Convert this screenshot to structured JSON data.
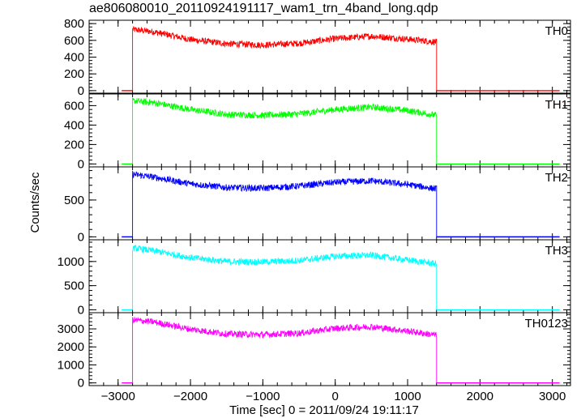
{
  "chart_data": {
    "type": "line",
    "title": "ae806080010_20110924191117_wam1_trn_4band_long.qdp",
    "xlabel": "Time [sec] 0 = 2011/09/24 19:11:17",
    "ylabel": "Counts/sec",
    "xlim": [
      -3400,
      3250
    ],
    "x_ticks": [
      -3000,
      -2000,
      -1000,
      0,
      1000,
      2000,
      3000
    ],
    "x_tick_labels": [
      "−3000",
      "−2000",
      "−1000",
      "0",
      "1000",
      "2000",
      "3000"
    ],
    "legend": "none",
    "grid": false,
    "panels": [
      {
        "name": "TH0",
        "color": "#ff0000",
        "ylim": [
          -30,
          840
        ],
        "y_ticks": [
          0,
          200,
          400,
          600,
          800
        ],
        "baseline_segments": [
          [
            -2950,
            -2800
          ],
          [
            1400,
            3100
          ]
        ],
        "x": [
          -2800,
          -2500,
          -2000,
          -1500,
          -1000,
          -500,
          0,
          500,
          1000,
          1400
        ],
        "values": [
          730,
          700,
          610,
          560,
          545,
          565,
          620,
          650,
          615,
          580
        ]
      },
      {
        "name": "TH1",
        "color": "#00ff00",
        "ylim": [
          -30,
          720
        ],
        "y_ticks": [
          0,
          200,
          400,
          600
        ],
        "baseline_segments": [
          [
            -2950,
            -2800
          ],
          [
            1400,
            3100
          ]
        ],
        "x": [
          -2800,
          -2500,
          -2000,
          -1500,
          -1000,
          -500,
          0,
          500,
          1000,
          1400
        ],
        "values": [
          650,
          630,
          560,
          510,
          500,
          515,
          560,
          585,
          550,
          500
        ]
      },
      {
        "name": "TH2",
        "color": "#0000ff",
        "ylim": [
          -40,
          950
        ],
        "y_ticks": [
          0,
          500
        ],
        "baseline_segments": [
          [
            -2950,
            -2800
          ],
          [
            1400,
            3100
          ]
        ],
        "x": [
          -2800,
          -2500,
          -2000,
          -1500,
          -1000,
          -500,
          0,
          500,
          1000,
          1400
        ],
        "values": [
          850,
          810,
          720,
          670,
          660,
          690,
          740,
          760,
          710,
          650
        ]
      },
      {
        "name": "TH3",
        "color": "#00ffff",
        "ylim": [
          -60,
          1450
        ],
        "y_ticks": [
          0,
          500,
          1000
        ],
        "baseline_segments": [
          [
            -2950,
            -2800
          ],
          [
            1400,
            3100
          ]
        ],
        "x": [
          -2800,
          -2500,
          -2000,
          -1500,
          -1000,
          -500,
          0,
          500,
          1000,
          1400
        ],
        "values": [
          1280,
          1220,
          1080,
          1000,
          990,
          1020,
          1110,
          1130,
          1030,
          950
        ]
      },
      {
        "name": "TH0123",
        "color": "#ff00ff",
        "ylim": [
          -150,
          3900
        ],
        "y_ticks": [
          0,
          1000,
          2000,
          3000
        ],
        "baseline_segments": [
          [
            -2950,
            -2800
          ],
          [
            1400,
            3100
          ]
        ],
        "x": [
          -2800,
          -2500,
          -2000,
          -1500,
          -1000,
          -500,
          0,
          500,
          1000,
          1400
        ],
        "values": [
          3500,
          3380,
          2980,
          2720,
          2680,
          2760,
          3030,
          3120,
          2880,
          2650
        ]
      }
    ]
  }
}
